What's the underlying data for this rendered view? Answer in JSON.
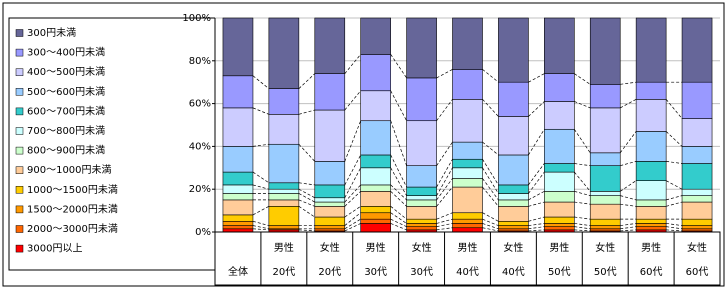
{
  "chart_data": {
    "type": "stacked-bar-100",
    "categories": [
      [
        "全体"
      ],
      [
        "男性",
        "20代"
      ],
      [
        "女性",
        "20代"
      ],
      [
        "男性",
        "30代"
      ],
      [
        "女性",
        "30代"
      ],
      [
        "男性",
        "40代"
      ],
      [
        "女性",
        "40代"
      ],
      [
        "男性",
        "50代"
      ],
      [
        "女性",
        "50代"
      ],
      [
        "男性",
        "60代"
      ],
      [
        "女性",
        "60代"
      ]
    ],
    "series": [
      {
        "name": "300円未満",
        "color": "#666699",
        "values": [
          27,
          33,
          26,
          17,
          28,
          24,
          30,
          26,
          31,
          30,
          30
        ]
      },
      {
        "name": "300～400円未満",
        "color": "#9999ff",
        "values": [
          15,
          12,
          17,
          17,
          20,
          14,
          16,
          13,
          11,
          8,
          17
        ]
      },
      {
        "name": "400～500円未満",
        "color": "#ccccff",
        "values": [
          18,
          14,
          24,
          14,
          21,
          20,
          18,
          13,
          21,
          15,
          13
        ]
      },
      {
        "name": "500～600円未満",
        "color": "#99ccff",
        "values": [
          12,
          18,
          11,
          16,
          10,
          8,
          14,
          16,
          6,
          14,
          8
        ]
      },
      {
        "name": "600～700円未満",
        "color": "#33cccc",
        "values": [
          6,
          3,
          6,
          6,
          4,
          4,
          4,
          4,
          12,
          9,
          12
        ]
      },
      {
        "name": "700～800円未満",
        "color": "#ccffff",
        "values": [
          4,
          2,
          2,
          8,
          2,
          5,
          3,
          9,
          2,
          9,
          3
        ]
      },
      {
        "name": "800～900円未満",
        "color": "#ccffcc",
        "values": [
          3,
          3,
          2,
          3,
          3,
          4,
          3,
          5,
          4,
          3,
          3
        ]
      },
      {
        "name": "900～1000円未満",
        "color": "#ffcc99",
        "values": [
          7,
          3,
          5,
          7,
          6,
          12,
          7,
          7,
          7,
          6,
          8
        ]
      },
      {
        "name": "1000～1500円未満",
        "color": "#ffcc00",
        "values": [
          3,
          9,
          4,
          3,
          2,
          3,
          2,
          3,
          3,
          2,
          3
        ]
      },
      {
        "name": "1500～2000円未満",
        "color": "#ff9900",
        "values": [
          2,
          1.5,
          1.5,
          3,
          1.5,
          2,
          1.5,
          1.5,
          1.5,
          1.5,
          1.5
        ]
      },
      {
        "name": "2000～3000円未満",
        "color": "#ff6600",
        "values": [
          1.5,
          0.5,
          1,
          2,
          1.5,
          2,
          1,
          1.5,
          1,
          1.5,
          1
        ]
      },
      {
        "name": "3000円以上",
        "color": "#ff0000",
        "values": [
          1.5,
          1,
          0.5,
          4,
          1,
          2,
          0.5,
          1,
          0.5,
          1,
          0.5
        ]
      }
    ],
    "ylim": [
      0,
      100
    ],
    "yticks": [
      {
        "value": 0,
        "label": "0%"
      },
      {
        "value": 20,
        "label": "20%"
      },
      {
        "value": 40,
        "label": "40%"
      },
      {
        "value": 60,
        "label": "60%"
      },
      {
        "value": 80,
        "label": "80%"
      },
      {
        "value": 100,
        "label": "100%"
      }
    ],
    "grid": true,
    "legend": "left"
  }
}
